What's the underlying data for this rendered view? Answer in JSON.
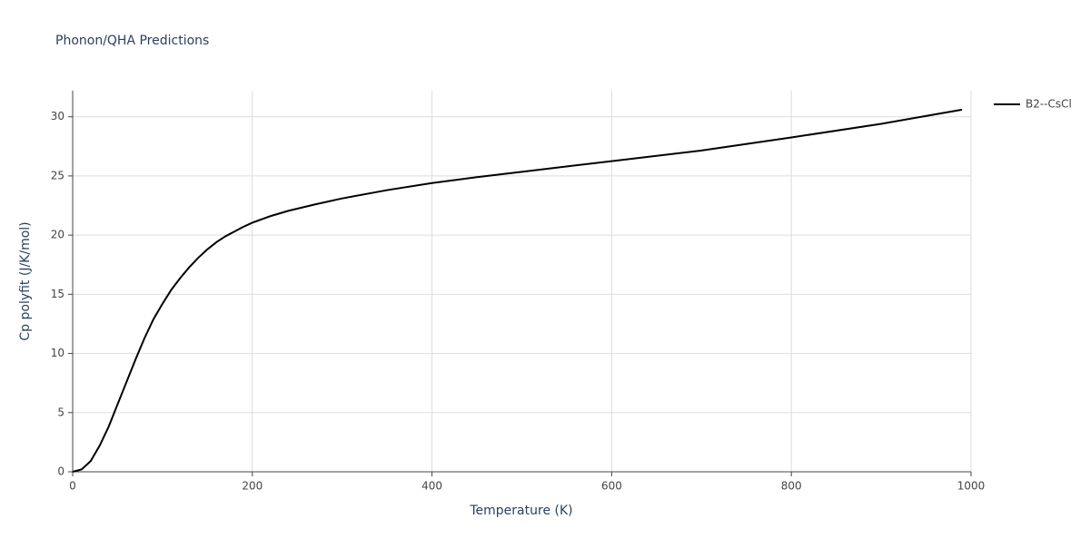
{
  "chart_data": {
    "type": "line",
    "title": "Phonon/QHA Predictions",
    "x_label": "Temperature (K)",
    "y_label": "Cp polyfit (J/K/mol)",
    "x": [
      0,
      10,
      20,
      30,
      40,
      50,
      60,
      70,
      80,
      90,
      100,
      110,
      120,
      130,
      140,
      150,
      160,
      170,
      180,
      190,
      200,
      220,
      240,
      270,
      300,
      350,
      400,
      450,
      500,
      600,
      700,
      800,
      900,
      990
    ],
    "series": [
      {
        "name": "B2--CsCl",
        "color": "#000000",
        "values": [
          0,
          0.2,
          0.9,
          2.2,
          3.8,
          5.7,
          7.6,
          9.5,
          11.3,
          12.9,
          14.2,
          15.4,
          16.4,
          17.3,
          18.1,
          18.8,
          19.4,
          19.9,
          20.3,
          20.7,
          21.05,
          21.6,
          22.05,
          22.6,
          23.1,
          23.8,
          24.4,
          24.9,
          25.35,
          26.25,
          27.15,
          28.25,
          29.4,
          30.6
        ]
      }
    ],
    "xlim": [
      0,
      1000
    ],
    "xticks": [
      0,
      200,
      400,
      600,
      800,
      1000
    ],
    "ylim": [
      0,
      32.2
    ],
    "yticks": [
      0,
      5,
      10,
      15,
      20,
      25,
      30
    ],
    "grid": true,
    "legend": "right"
  }
}
